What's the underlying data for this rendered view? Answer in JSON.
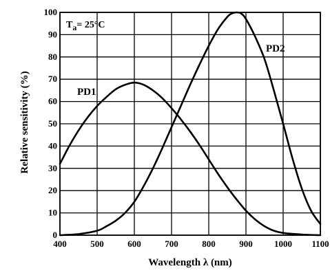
{
  "chart_data": {
    "type": "line",
    "xlabel": "Wavelength λ (nm)",
    "ylabel": "Relative sensitivity (%)",
    "xlim": [
      400,
      1100
    ],
    "ylim": [
      0,
      100
    ],
    "x_ticks": [
      400,
      500,
      600,
      700,
      800,
      900,
      1000,
      1100
    ],
    "y_ticks": [
      0,
      10,
      20,
      30,
      40,
      50,
      60,
      70,
      80,
      90,
      100
    ],
    "grid": true,
    "annotation": {
      "base": "T",
      "sub": "a",
      "rest": "= 25°C"
    },
    "series": [
      {
        "name": "PD1",
        "x": [
          400,
          425,
          450,
          475,
          500,
          525,
          550,
          575,
          600,
          625,
          650,
          675,
          700,
          725,
          750,
          775,
          800,
          825,
          850,
          875,
          900,
          925,
          950,
          975,
          1000,
          1050,
          1100
        ],
        "y": [
          32,
          40,
          47,
          53,
          58,
          62,
          65.5,
          67.5,
          68.5,
          67.5,
          65,
          61.5,
          57,
          52,
          46.5,
          40.5,
          34,
          27.5,
          21.5,
          16,
          11,
          7,
          4,
          2,
          1,
          0.3,
          0
        ]
      },
      {
        "name": "PD2",
        "x": [
          400,
          450,
          500,
          525,
          550,
          575,
          600,
          625,
          650,
          675,
          700,
          725,
          750,
          775,
          800,
          825,
          850,
          862,
          875,
          887,
          900,
          925,
          950,
          975,
          1000,
          1025,
          1050,
          1075,
          1100
        ],
        "y": [
          0,
          0.5,
          2,
          4,
          6.5,
          10,
          15,
          22,
          30,
          39,
          48.5,
          58,
          67.5,
          76.5,
          85,
          92.5,
          98,
          99.5,
          100,
          99.5,
          97,
          89,
          79,
          65,
          50,
          34.5,
          21,
          11,
          5
        ]
      }
    ]
  }
}
